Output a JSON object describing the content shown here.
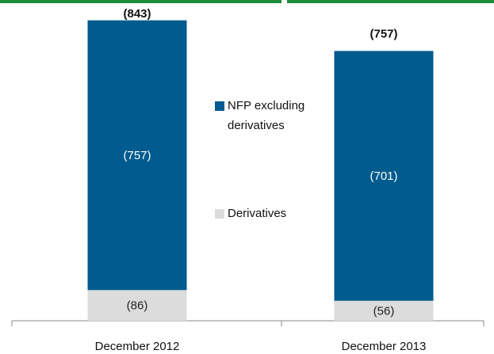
{
  "chart_data": {
    "type": "stacked_bar",
    "categories": [
      "December 2012",
      "December 2013"
    ],
    "series": [
      {
        "name": "NFP excluding derivatives",
        "color": "#005b8f",
        "values": [
          -757,
          -701
        ],
        "value_labels": [
          "(757)",
          "(701)"
        ]
      },
      {
        "name": "Derivatives",
        "color": "#dcdcdc",
        "values": [
          -86,
          -56
        ],
        "value_labels": [
          "(86)",
          "(56)"
        ]
      }
    ],
    "totals": [
      -843,
      -757
    ],
    "total_labels": [
      "(843)",
      "(757)"
    ],
    "ylim": [
      0,
      -900
    ]
  }
}
